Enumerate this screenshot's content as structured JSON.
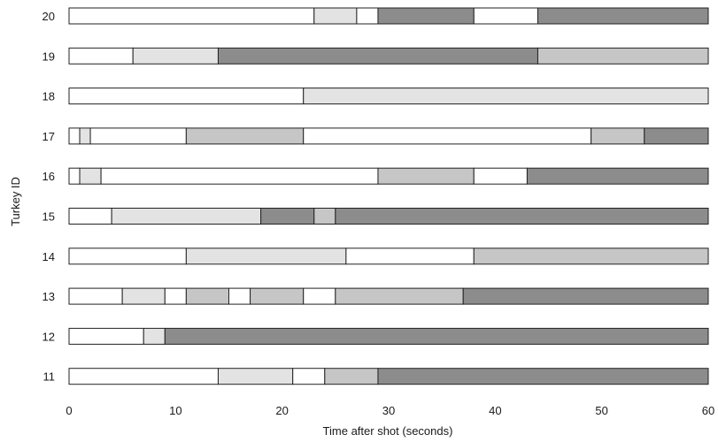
{
  "chart_data": {
    "type": "bar",
    "orientation": "horizontal-stacked-timeline",
    "xlabel": "Time after shot (seconds)",
    "ylabel": "Turkey ID",
    "xlim": [
      0,
      60
    ],
    "xticks": [
      "0",
      "10",
      "20",
      "30",
      "40",
      "50",
      "60"
    ],
    "grid": false,
    "legend": "none",
    "state_colors": {
      "white": "#ffffff",
      "light": "#e3e3e3",
      "medium": "#c6c6c6",
      "dark": "#8c8c8c"
    },
    "series": [
      {
        "label": "20",
        "segments": [
          {
            "start": 0,
            "end": 23,
            "state": "white"
          },
          {
            "start": 23,
            "end": 27,
            "state": "light"
          },
          {
            "start": 27,
            "end": 29,
            "state": "white"
          },
          {
            "start": 29,
            "end": 38,
            "state": "dark"
          },
          {
            "start": 38,
            "end": 44,
            "state": "white"
          },
          {
            "start": 44,
            "end": 60,
            "state": "dark"
          }
        ]
      },
      {
        "label": "19",
        "segments": [
          {
            "start": 0,
            "end": 6,
            "state": "white"
          },
          {
            "start": 6,
            "end": 14,
            "state": "light"
          },
          {
            "start": 14,
            "end": 44,
            "state": "dark"
          },
          {
            "start": 44,
            "end": 60,
            "state": "medium"
          }
        ]
      },
      {
        "label": "18",
        "segments": [
          {
            "start": 0,
            "end": 22,
            "state": "white"
          },
          {
            "start": 22,
            "end": 60,
            "state": "light"
          }
        ]
      },
      {
        "label": "17",
        "segments": [
          {
            "start": 0,
            "end": 1,
            "state": "white"
          },
          {
            "start": 1,
            "end": 2,
            "state": "light"
          },
          {
            "start": 2,
            "end": 11,
            "state": "white"
          },
          {
            "start": 11,
            "end": 22,
            "state": "medium"
          },
          {
            "start": 22,
            "end": 49,
            "state": "white"
          },
          {
            "start": 49,
            "end": 54,
            "state": "medium"
          },
          {
            "start": 54,
            "end": 60,
            "state": "dark"
          }
        ]
      },
      {
        "label": "16",
        "segments": [
          {
            "start": 0,
            "end": 1,
            "state": "white"
          },
          {
            "start": 1,
            "end": 3,
            "state": "light"
          },
          {
            "start": 3,
            "end": 29,
            "state": "white"
          },
          {
            "start": 29,
            "end": 38,
            "state": "medium"
          },
          {
            "start": 38,
            "end": 43,
            "state": "white"
          },
          {
            "start": 43,
            "end": 60,
            "state": "dark"
          }
        ]
      },
      {
        "label": "15",
        "segments": [
          {
            "start": 0,
            "end": 4,
            "state": "white"
          },
          {
            "start": 4,
            "end": 18,
            "state": "light"
          },
          {
            "start": 18,
            "end": 23,
            "state": "dark"
          },
          {
            "start": 23,
            "end": 25,
            "state": "medium"
          },
          {
            "start": 25,
            "end": 60,
            "state": "dark"
          }
        ]
      },
      {
        "label": "14",
        "segments": [
          {
            "start": 0,
            "end": 11,
            "state": "white"
          },
          {
            "start": 11,
            "end": 26,
            "state": "light"
          },
          {
            "start": 26,
            "end": 38,
            "state": "white"
          },
          {
            "start": 38,
            "end": 60,
            "state": "medium"
          }
        ]
      },
      {
        "label": "13",
        "segments": [
          {
            "start": 0,
            "end": 5,
            "state": "white"
          },
          {
            "start": 5,
            "end": 9,
            "state": "light"
          },
          {
            "start": 9,
            "end": 11,
            "state": "white"
          },
          {
            "start": 11,
            "end": 15,
            "state": "medium"
          },
          {
            "start": 15,
            "end": 17,
            "state": "white"
          },
          {
            "start": 17,
            "end": 22,
            "state": "medium"
          },
          {
            "start": 22,
            "end": 25,
            "state": "white"
          },
          {
            "start": 25,
            "end": 37,
            "state": "medium"
          },
          {
            "start": 37,
            "end": 60,
            "state": "dark"
          }
        ]
      },
      {
        "label": "12",
        "segments": [
          {
            "start": 0,
            "end": 7,
            "state": "white"
          },
          {
            "start": 7,
            "end": 9,
            "state": "light"
          },
          {
            "start": 9,
            "end": 60,
            "state": "dark"
          }
        ]
      },
      {
        "label": "11",
        "segments": [
          {
            "start": 0,
            "end": 14,
            "state": "white"
          },
          {
            "start": 14,
            "end": 21,
            "state": "light"
          },
          {
            "start": 21,
            "end": 24,
            "state": "white"
          },
          {
            "start": 24,
            "end": 29,
            "state": "medium"
          },
          {
            "start": 29,
            "end": 60,
            "state": "dark"
          }
        ]
      }
    ]
  }
}
